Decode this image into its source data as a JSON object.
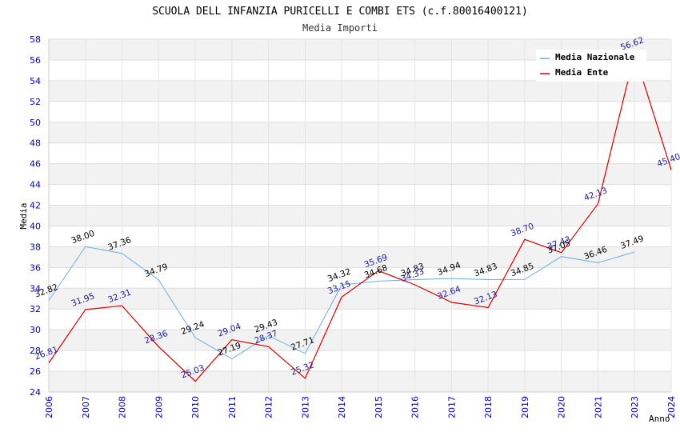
{
  "chart_data": {
    "type": "line",
    "title": "SCUOLA DELL INFANZIA PURICELLI E COMBI ETS (c.f.80016400121)",
    "subtitle": "Media Importi",
    "xlabel": "Anno",
    "ylabel": "Media",
    "ylim": [
      24,
      58
    ],
    "ytick_step": 2,
    "grid": true,
    "legend_position": "top-right",
    "categories": [
      "2006",
      "2007",
      "2008",
      "2009",
      "2010",
      "2011",
      "2012",
      "2013",
      "2014",
      "2015",
      "2016",
      "2017",
      "2018",
      "2019",
      "2020",
      "2021",
      "2023",
      "2024"
    ],
    "series": [
      {
        "name": "Media Nazionale",
        "color": "#6aaee6",
        "values": [
          32.82,
          38.0,
          37.36,
          34.79,
          29.24,
          27.19,
          29.43,
          27.71,
          34.32,
          34.68,
          34.83,
          34.94,
          34.83,
          34.85,
          37.05,
          36.46,
          37.49,
          null
        ],
        "labels": [
          "32.82",
          "38.00",
          "37.36",
          "34.79",
          "29.24",
          "27.19",
          "29.43",
          "27.71",
          "34.32",
          "34.68",
          "34.83",
          "34.94",
          "34.83",
          "34.85",
          "37.05",
          "36.46",
          "37.49",
          ""
        ]
      },
      {
        "name": "Media Ente",
        "color": "#dd0000",
        "values": [
          26.81,
          31.95,
          32.31,
          28.36,
          25.03,
          29.04,
          28.37,
          25.32,
          33.15,
          35.69,
          34.33,
          32.64,
          32.13,
          38.7,
          37.43,
          42.13,
          56.62,
          45.4
        ],
        "labels": [
          "26.81",
          "31.95",
          "32.31",
          "28.36",
          "25.03",
          "29.04",
          "28.37",
          "25.32",
          "33.15",
          "35.69",
          "34.33",
          "32.64",
          "32.13",
          "38.70",
          "37.43",
          "42.13",
          "56.62",
          "45.40"
        ]
      }
    ]
  }
}
